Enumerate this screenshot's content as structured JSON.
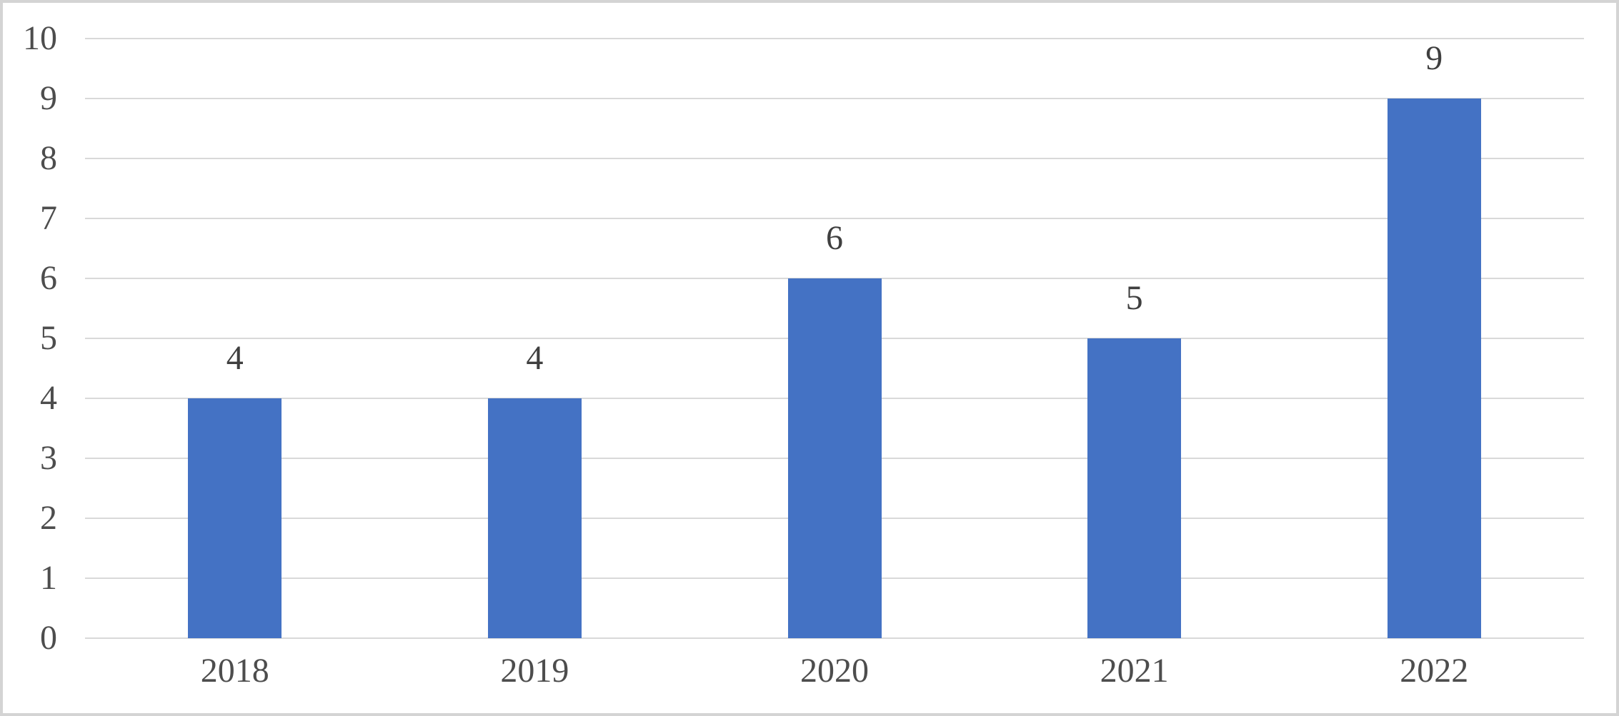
{
  "chart_data": {
    "type": "bar",
    "title": "",
    "xlabel": "",
    "ylabel": "",
    "categories": [
      "2018",
      "2019",
      "2020",
      "2021",
      "2022"
    ],
    "values": [
      4,
      4,
      6,
      5,
      9
    ],
    "data_labels": [
      "4",
      "4",
      "6",
      "5",
      "9"
    ],
    "yticks": [
      0,
      1,
      2,
      3,
      4,
      5,
      6,
      7,
      8,
      9,
      10
    ],
    "ylim": [
      0,
      10
    ],
    "grid": "horizontal",
    "legend_position": "none",
    "colors": {
      "bar": "#4472C4",
      "gridline": "#D9D9D9",
      "axis_line": "#D9D9D9",
      "axis_label": "#4D4D4D",
      "data_label": "#3F3F3F",
      "background": "#FFFFFF",
      "frame_border": "#D4D4D4"
    }
  }
}
